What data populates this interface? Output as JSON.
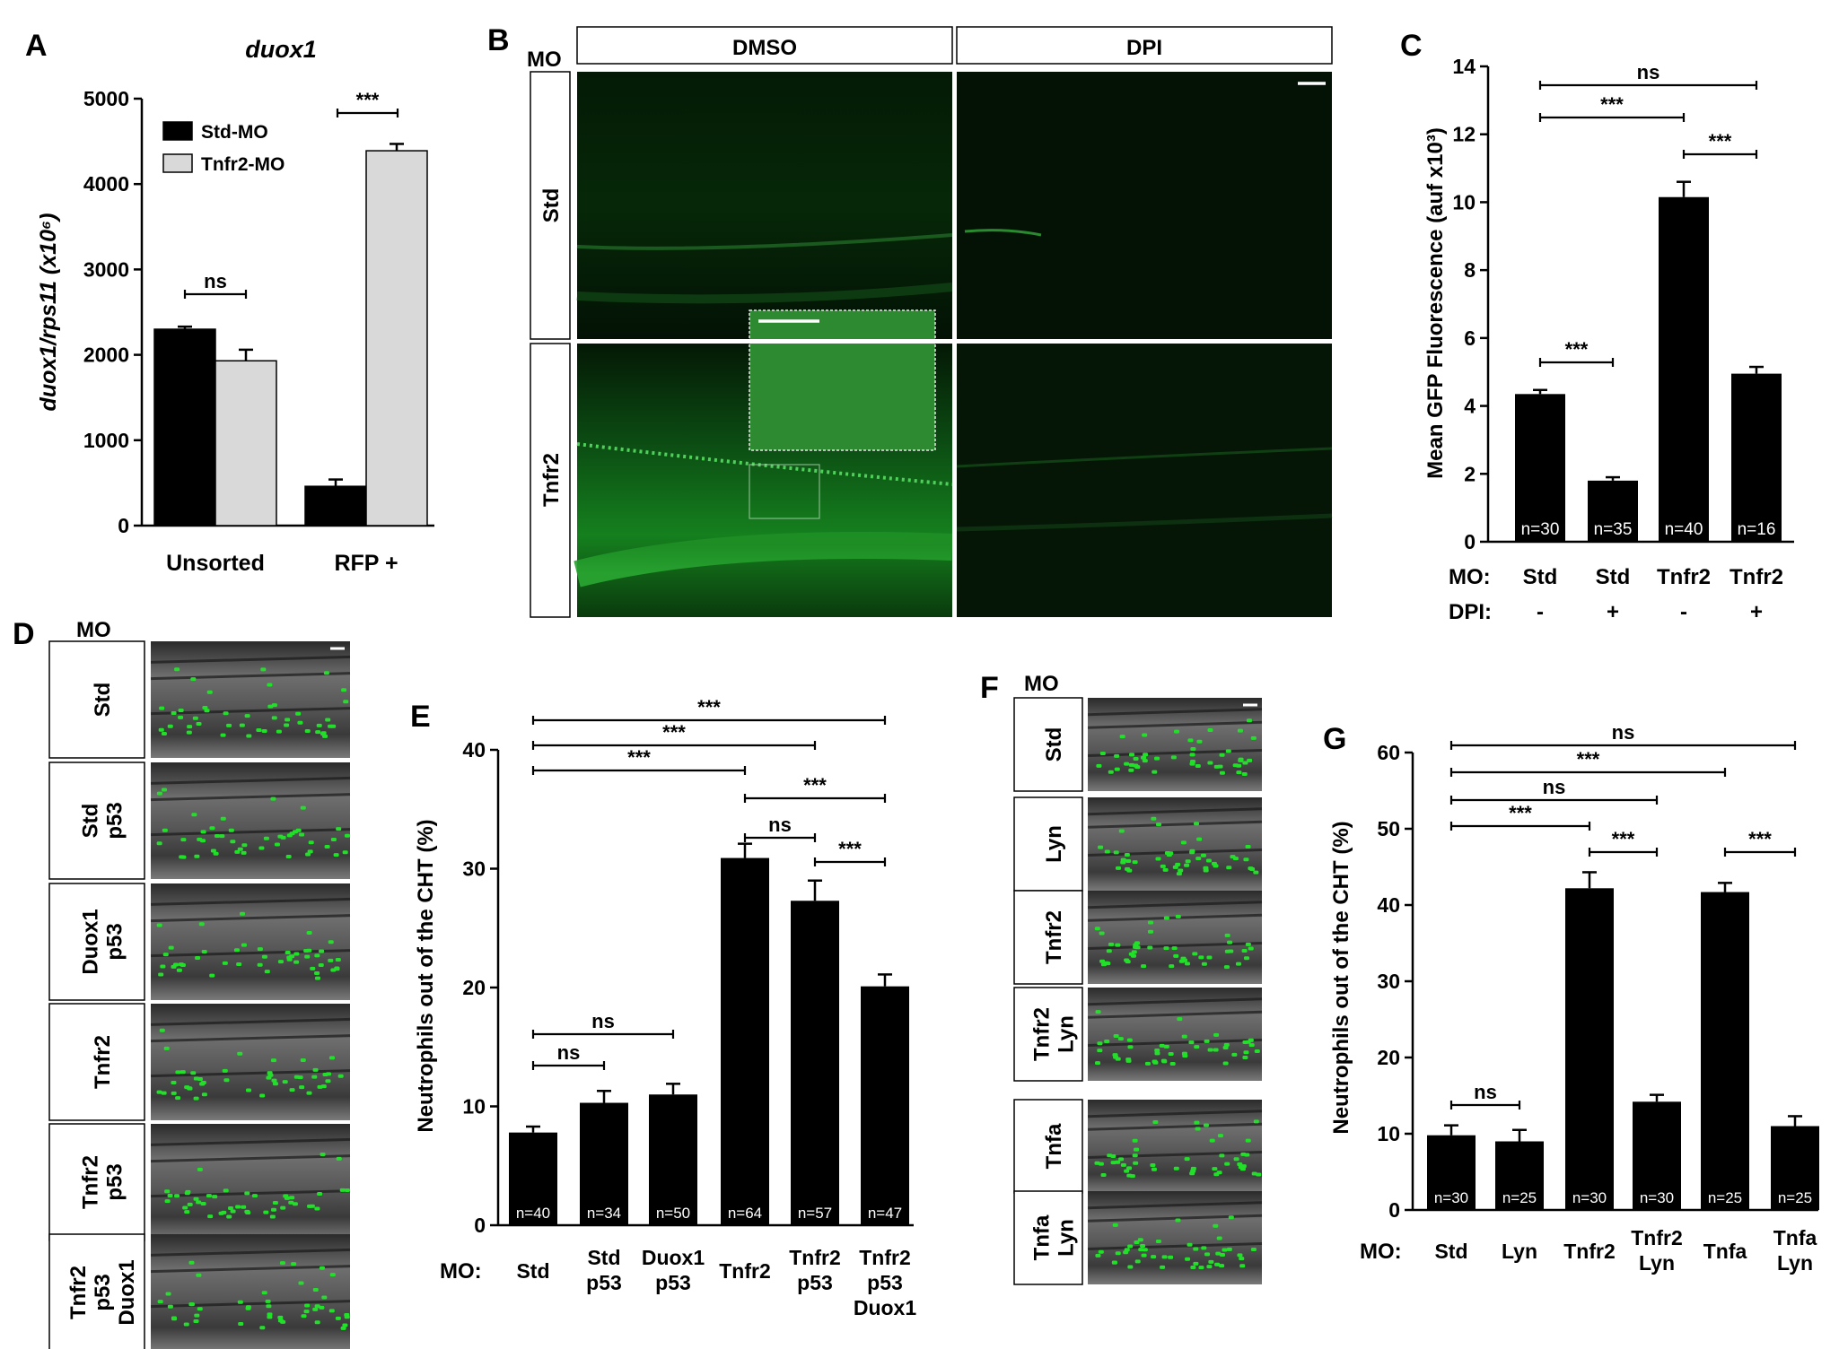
{
  "panels": {
    "A": {
      "letter": "A",
      "title": "duox1",
      "ylabel": "duox1/rps11 (x10⁶)",
      "chart_data": {
        "type": "bar",
        "categories": [
          "Unsorted",
          "RFP +"
        ],
        "series": [
          {
            "name": "Std-MO",
            "values": [
              2300,
              460
            ],
            "errors": [
              30,
              80
            ],
            "color": "#000000"
          },
          {
            "name": "Tnfr2-MO",
            "values": [
              1930,
              4390
            ],
            "errors": [
              130,
              80
            ],
            "color": "#d9d9d9"
          }
        ],
        "yticks": [
          0,
          1000,
          2000,
          3000,
          4000,
          5000
        ],
        "ylim": [
          0,
          5000
        ],
        "significance": [
          {
            "group": "Unsorted",
            "text": "ns"
          },
          {
            "group": "RFP +",
            "text": "***"
          }
        ],
        "legend_position": "top-left"
      }
    },
    "B": {
      "letter": "B",
      "mo_label": "MO",
      "col_labels": [
        "DMSO",
        "DPI"
      ],
      "row_labels": [
        "Std",
        "Tnfr2"
      ]
    },
    "C": {
      "letter": "C",
      "ylabel": "Mean GFP Fluorescence (auf x10³)",
      "row1_label": "MO:",
      "row2_label": "DPI:",
      "chart_data": {
        "type": "bar",
        "categories": [
          "Std",
          "Std",
          "Tnfr2",
          "Tnfr2"
        ],
        "dpi": [
          "-",
          "+",
          "-",
          "+"
        ],
        "values": [
          4.35,
          1.8,
          10.15,
          4.95
        ],
        "errors": [
          0.12,
          0.1,
          0.45,
          0.2
        ],
        "n_labels": [
          "n=30",
          "n=35",
          "n=40",
          "n=16"
        ],
        "yticks": [
          0,
          2,
          4,
          6,
          8,
          10,
          12,
          14
        ],
        "ylim": [
          0,
          14
        ],
        "significance": [
          {
            "from": 0,
            "to": 1,
            "text": "***"
          },
          {
            "from": 2,
            "to": 3,
            "text": "***"
          },
          {
            "from": 0,
            "to": 2,
            "text": "***"
          },
          {
            "from": 0,
            "to": 3,
            "text": "ns"
          }
        ]
      }
    },
    "D": {
      "letter": "D",
      "mo_label": "MO",
      "row_labels": [
        [
          "Std"
        ],
        [
          "Std",
          "p53"
        ],
        [
          "Duox1",
          "p53"
        ],
        [
          "Tnfr2"
        ],
        [
          "Tnfr2",
          "p53"
        ],
        [
          "Tnfr2",
          "p53",
          "Duox1"
        ]
      ]
    },
    "E": {
      "letter": "E",
      "ylabel": "Neutrophils out of the CHT (%)",
      "mo_label": "MO:",
      "chart_data": {
        "type": "bar",
        "categories": [
          [
            "Std"
          ],
          [
            "Std",
            "p53"
          ],
          [
            "Duox1",
            "p53"
          ],
          [
            "Tnfr2"
          ],
          [
            "Tnfr2",
            "p53"
          ],
          [
            "Tnfr2",
            "p53",
            "Duox1"
          ]
        ],
        "values": [
          7.8,
          10.3,
          11.0,
          30.9,
          27.3,
          20.1
        ],
        "errors": [
          0.5,
          1.0,
          0.9,
          1.2,
          1.7,
          1.0
        ],
        "n_labels": [
          "n=40",
          "n=34",
          "n=50",
          "n=64",
          "n=57",
          "n=47"
        ],
        "yticks": [
          0,
          10,
          20,
          30,
          40
        ],
        "ylim": [
          0,
          40
        ],
        "significance": [
          {
            "from": 0,
            "to": 1,
            "text": "ns"
          },
          {
            "from": 0,
            "to": 2,
            "text": "ns"
          },
          {
            "from": 4,
            "to": 5,
            "text": "***"
          },
          {
            "from": 3,
            "to": 4,
            "text": "ns"
          },
          {
            "from": 3,
            "to": 5,
            "text": "***"
          },
          {
            "from": 0,
            "to": 3,
            "text": "***"
          },
          {
            "from": 0,
            "to": 4,
            "text": "***"
          },
          {
            "from": 0,
            "to": 5,
            "text": "***"
          }
        ]
      }
    },
    "F": {
      "letter": "F",
      "mo_label": "MO",
      "row_labels": [
        [
          "Std"
        ],
        [
          "Lyn"
        ],
        [
          "Tnfr2"
        ],
        [
          "Tnfr2",
          "Lyn"
        ],
        [
          "Tnfa"
        ],
        [
          "Tnfa",
          "Lyn"
        ]
      ]
    },
    "G": {
      "letter": "G",
      "ylabel": "Neutrophils out of the CHT (%)",
      "mo_label": "MO:",
      "chart_data": {
        "type": "bar",
        "categories": [
          [
            "Std"
          ],
          [
            "Lyn"
          ],
          [
            "Tnfr2"
          ],
          [
            "Tnfr2",
            "Lyn"
          ],
          [
            "Tnfa"
          ],
          [
            "Tnfa",
            "Lyn"
          ]
        ],
        "values": [
          9.8,
          9.0,
          42.2,
          14.2,
          41.7,
          11.0
        ],
        "errors": [
          1.3,
          1.5,
          2.1,
          0.9,
          1.2,
          1.3
        ],
        "n_labels": [
          "n=30",
          "n=25",
          "n=30",
          "n=30",
          "n=25",
          "n=25"
        ],
        "yticks": [
          0,
          10,
          20,
          30,
          40,
          50,
          60
        ],
        "ylim": [
          0,
          60
        ],
        "significance": [
          {
            "from": 0,
            "to": 1,
            "text": "ns"
          },
          {
            "from": 2,
            "to": 3,
            "text": "***"
          },
          {
            "from": 4,
            "to": 5,
            "text": "***"
          },
          {
            "from": 0,
            "to": 2,
            "text": "***"
          },
          {
            "from": 0,
            "to": 3,
            "text": "ns"
          },
          {
            "from": 0,
            "to": 4,
            "text": "***"
          },
          {
            "from": 0,
            "to": 5,
            "text": "ns"
          }
        ]
      }
    }
  }
}
